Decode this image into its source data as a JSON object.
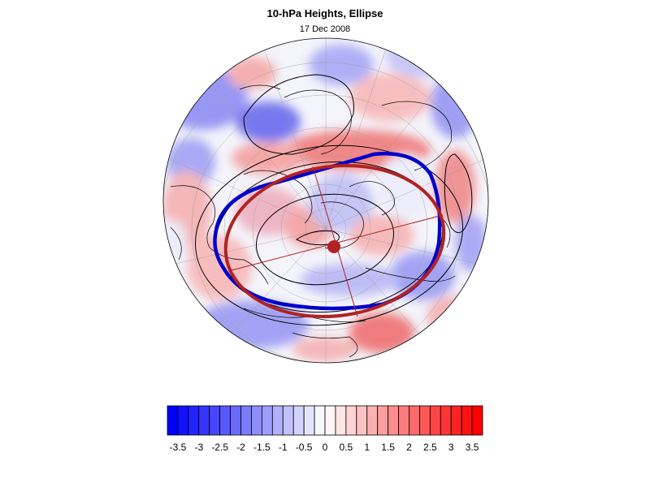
{
  "title": "10-hPa Heights, Ellipse",
  "subtitle": "17 Dec 2008",
  "colors": {
    "ellipse_fit": "#b22222",
    "contour_highlight": "#0000cc",
    "contour": "#000000",
    "coast": "#000000",
    "grid": "#9a9a9a"
  },
  "colorbar": {
    "min": -3.75,
    "max": 3.75,
    "step": 0.25,
    "tick_labels": [
      "-3.5",
      "-3",
      "-2.5",
      "-2",
      "-1.5",
      "-1",
      "-0.5",
      "0",
      "0.5",
      "1",
      "1.5",
      "2",
      "2.5",
      "3",
      "3.5"
    ]
  }
}
